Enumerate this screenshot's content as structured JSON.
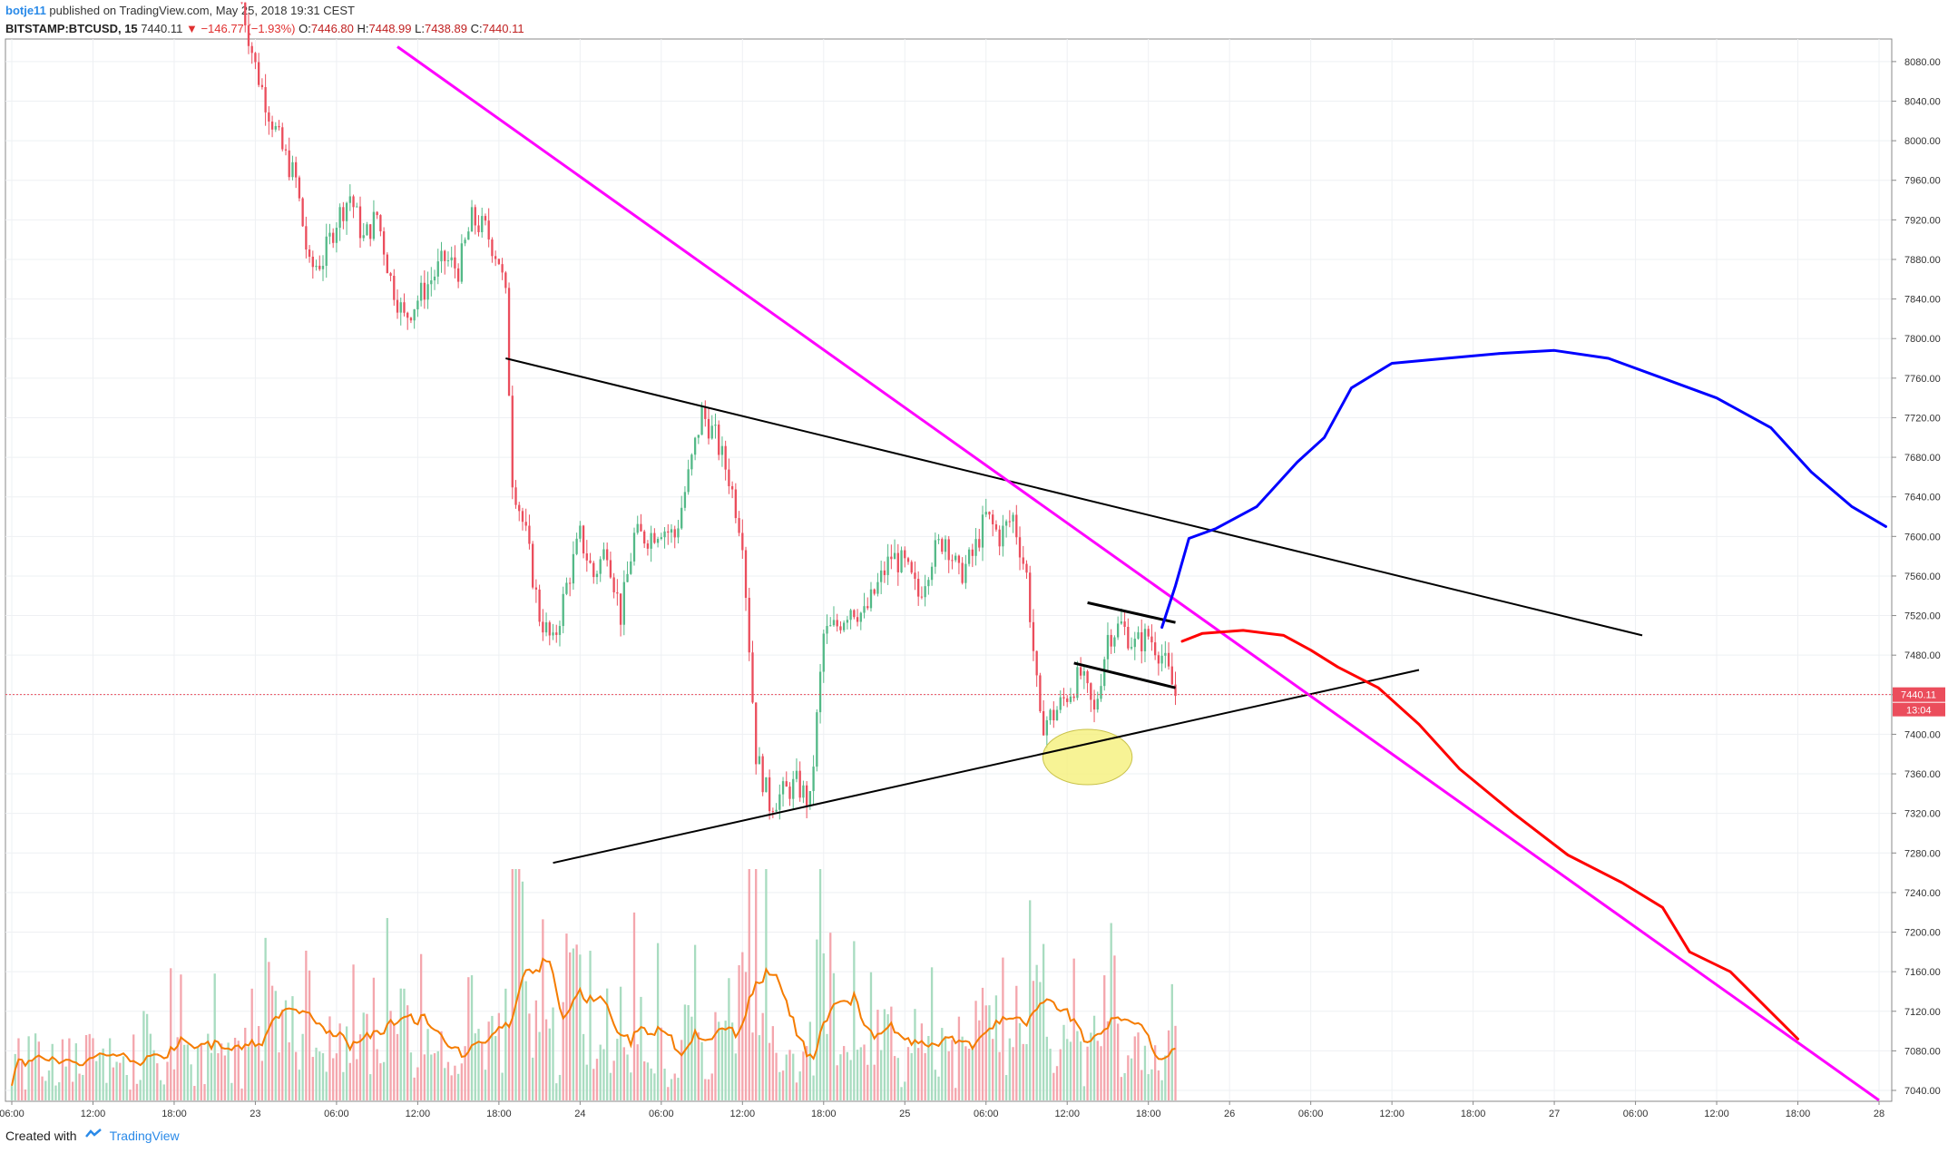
{
  "header": {
    "author": "botje11",
    "published_text": "published on TradingView.com, May 25, 2018 19:31 CEST",
    "symbol": "BITSTAMP:BTCUSD, 15",
    "last": "7440.11",
    "change": "−146.77 (−1.93%)",
    "o_label": "O:",
    "o": "7446.80",
    "h_label": "H:",
    "h": "7448.99",
    "l_label": "L:",
    "l": "7438.89",
    "c_label": "C:",
    "c": "7440.11"
  },
  "footer": {
    "created_with": "Created with",
    "brand": "TradingView"
  },
  "colors": {
    "up": "#53b987",
    "down": "#eb4d5c",
    "ma": "#f57c00",
    "trend_pink": "#ff00ff",
    "projection_red": "#ff0000",
    "projection_blue": "#0000ff",
    "trendline": "#000000",
    "price_tag": "#eb4d5c",
    "highlight": "#f5f07a"
  },
  "chart_data": {
    "type": "candlestick",
    "symbol": "BITSTAMP:BTCUSD",
    "interval": "15",
    "ylim": [
      7020,
      8110
    ],
    "x_axis": {
      "range_hours": [
        0,
        115
      ],
      "ticks": [
        {
          "t": 0,
          "label": "06:00"
        },
        {
          "t": 6,
          "label": "12:00"
        },
        {
          "t": 12,
          "label": "18:00"
        },
        {
          "t": 18,
          "label": "23"
        },
        {
          "t": 24,
          "label": "06:00"
        },
        {
          "t": 30,
          "label": "12:00"
        },
        {
          "t": 36,
          "label": "18:00"
        },
        {
          "t": 42,
          "label": "24"
        },
        {
          "t": 48,
          "label": "06:00"
        },
        {
          "t": 54,
          "label": "12:00"
        },
        {
          "t": 60,
          "label": "18:00"
        },
        {
          "t": 66,
          "label": "25"
        },
        {
          "t": 72,
          "label": "06:00"
        },
        {
          "t": 78,
          "label": "12:00"
        },
        {
          "t": 84,
          "label": "18:00"
        },
        {
          "t": 90,
          "label": "26"
        },
        {
          "t": 96,
          "label": "06:00"
        },
        {
          "t": 102,
          "label": "12:00"
        },
        {
          "t": 108,
          "label": "18:00"
        },
        {
          "t": 114,
          "label": "27"
        },
        {
          "t": 120,
          "label": "06:00"
        },
        {
          "t": 126,
          "label": "12:00"
        },
        {
          "t": 132,
          "label": "18:00"
        },
        {
          "t": 138,
          "label": "28"
        }
      ]
    },
    "y_ticks": [
      "8080.00",
      "8040.00",
      "8000.00",
      "7960.00",
      "7920.00",
      "7880.00",
      "7840.00",
      "7800.00",
      "7760.00",
      "7720.00",
      "7680.00",
      "7640.00",
      "7600.00",
      "7560.00",
      "7520.00",
      "7480.00",
      "7440.00",
      "7400.00",
      "7360.00",
      "7320.00",
      "7280.00",
      "7240.00",
      "7200.00",
      "7160.00",
      "7120.00",
      "7080.00",
      "7040.00"
    ],
    "last_price_label": "7440.11",
    "countdown_label": "13:04",
    "last_price": 7440.11,
    "price_path": [
      [
        17,
        8140
      ],
      [
        18,
        8075
      ],
      [
        19,
        8030
      ],
      [
        20,
        7990
      ],
      [
        21,
        7960
      ],
      [
        22,
        7870
      ],
      [
        23,
        7880
      ],
      [
        24,
        7920
      ],
      [
        25,
        7945
      ],
      [
        26,
        7900
      ],
      [
        27,
        7925
      ],
      [
        28,
        7860
      ],
      [
        29,
        7820
      ],
      [
        30,
        7840
      ],
      [
        31,
        7860
      ],
      [
        32,
        7880
      ],
      [
        33,
        7870
      ],
      [
        34,
        7920
      ],
      [
        35,
        7910
      ],
      [
        36,
        7880
      ],
      [
        36.5,
        7840
      ],
      [
        37,
        7660
      ],
      [
        38,
        7600
      ],
      [
        39,
        7520
      ],
      [
        40,
        7490
      ],
      [
        41,
        7550
      ],
      [
        42,
        7600
      ],
      [
        43,
        7560
      ],
      [
        44,
        7590
      ],
      [
        45,
        7520
      ],
      [
        46,
        7600
      ],
      [
        47,
        7600
      ],
      [
        48,
        7610
      ],
      [
        49,
        7600
      ],
      [
        50,
        7660
      ],
      [
        51,
        7725
      ],
      [
        52,
        7700
      ],
      [
        53,
        7660
      ],
      [
        54,
        7600
      ],
      [
        55,
        7380
      ],
      [
        56,
        7330
      ],
      [
        57,
        7340
      ],
      [
        58,
        7350
      ],
      [
        59,
        7330
      ],
      [
        60,
        7500
      ],
      [
        61,
        7510
      ],
      [
        62,
        7530
      ],
      [
        63,
        7520
      ],
      [
        64,
        7550
      ],
      [
        65,
        7580
      ],
      [
        66,
        7570
      ],
      [
        67,
        7540
      ],
      [
        68,
        7580
      ],
      [
        69,
        7600
      ],
      [
        70,
        7560
      ],
      [
        71,
        7580
      ],
      [
        72,
        7620
      ],
      [
        73,
        7600
      ],
      [
        74,
        7620
      ],
      [
        75,
        7560
      ],
      [
        76,
        7410
      ],
      [
        77,
        7420
      ],
      [
        78,
        7440
      ],
      [
        79,
        7460
      ],
      [
        80,
        7420
      ],
      [
        81,
        7500
      ],
      [
        82,
        7510
      ],
      [
        83,
        7490
      ],
      [
        84,
        7500
      ],
      [
        85,
        7480
      ],
      [
        86,
        7440
      ]
    ],
    "volume_max": 12,
    "volume_labels_visible": false,
    "annotations": {
      "trend_pink": [
        [
          28.5,
          8095
        ],
        [
          138,
          7030
        ]
      ],
      "resistance_black": [
        [
          36.5,
          7780
        ],
        [
          120.5,
          7500
        ]
      ],
      "support_black": [
        [
          40,
          7270
        ],
        [
          104,
          7465
        ]
      ],
      "flag_upper": [
        [
          79.5,
          7533
        ],
        [
          86,
          7513
        ]
      ],
      "flag_lower": [
        [
          78.5,
          7472
        ],
        [
          86,
          7447
        ]
      ],
      "projection_red": [
        [
          86.5,
          7494
        ],
        [
          88,
          7502
        ],
        [
          91,
          7505
        ],
        [
          94,
          7500
        ],
        [
          96,
          7485
        ],
        [
          98,
          7468
        ],
        [
          101,
          7447
        ],
        [
          104,
          7410
        ],
        [
          107,
          7365
        ],
        [
          111,
          7320
        ],
        [
          115,
          7278
        ],
        [
          119,
          7250
        ],
        [
          122,
          7225
        ],
        [
          124,
          7180
        ],
        [
          127,
          7160
        ],
        [
          132,
          7092
        ]
      ],
      "projection_blue": [
        [
          85,
          7508
        ],
        [
          86,
          7550
        ],
        [
          87,
          7598
        ],
        [
          89,
          7608
        ],
        [
          92,
          7630
        ],
        [
          95,
          7675
        ],
        [
          97,
          7700
        ],
        [
          99,
          7750
        ],
        [
          102,
          7775
        ],
        [
          106,
          7780
        ],
        [
          110,
          7785
        ],
        [
          114,
          7788
        ],
        [
          118,
          7780
        ],
        [
          122,
          7760
        ],
        [
          126,
          7740
        ],
        [
          130,
          7710
        ],
        [
          133,
          7665
        ],
        [
          136,
          7630
        ],
        [
          138.5,
          7610
        ]
      ],
      "highlight_ellipse": {
        "center": [
          79.5,
          7377
        ],
        "radius_hours": 3.3,
        "radius_price": 28
      }
    }
  }
}
